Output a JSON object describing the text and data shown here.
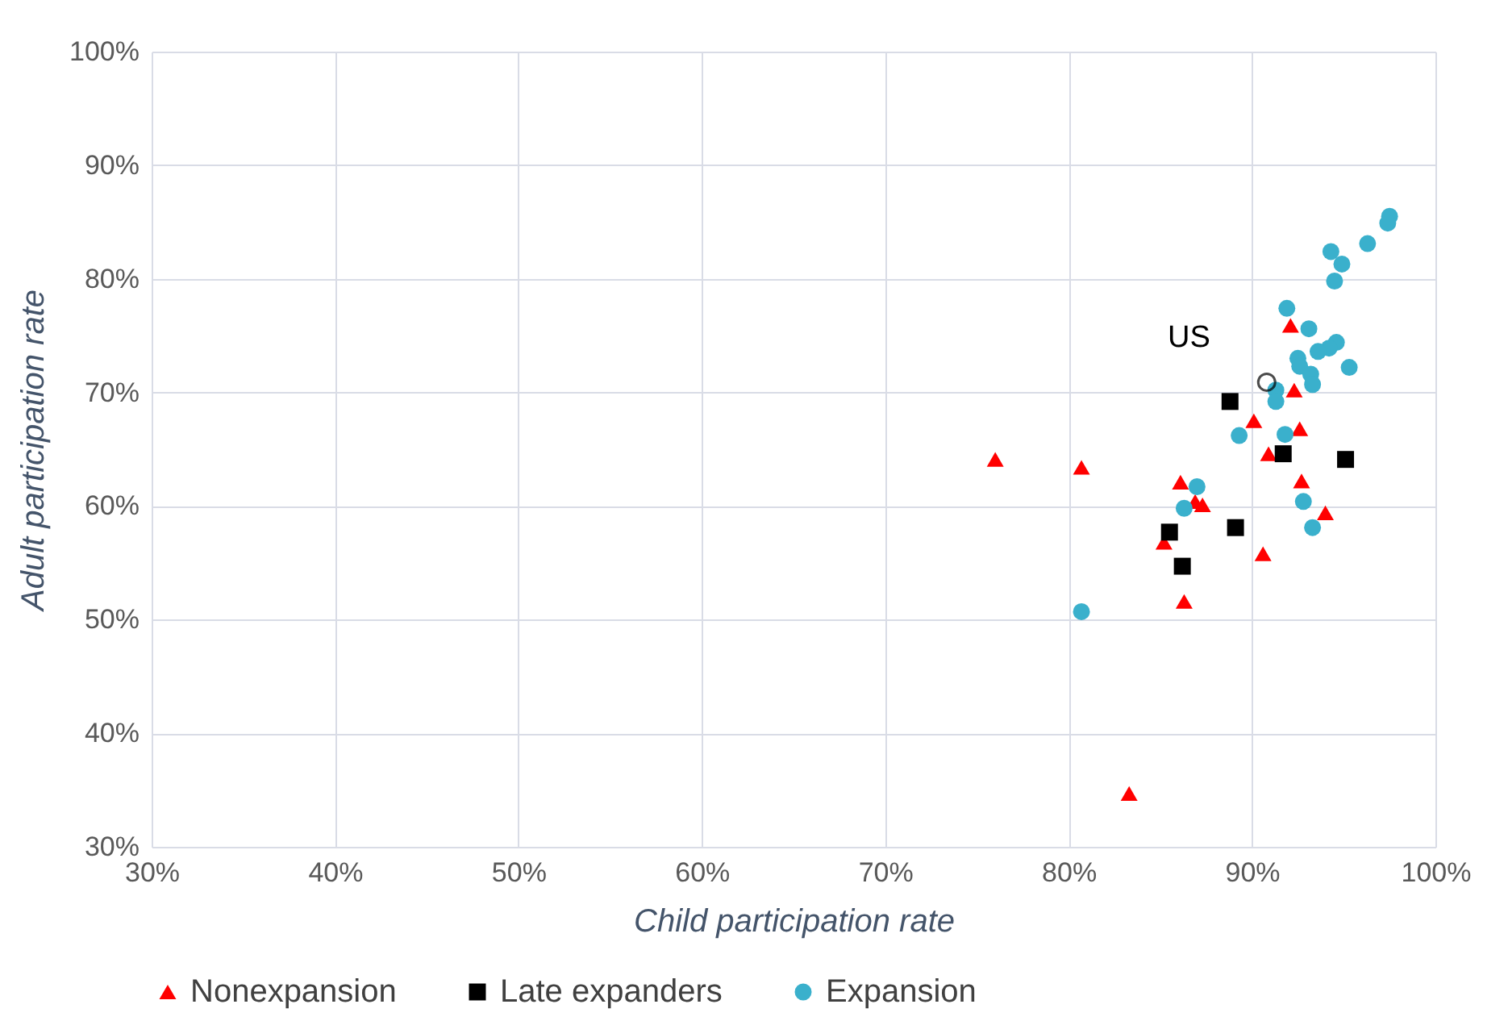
{
  "chart_data": {
    "type": "scatter",
    "xlabel": "Child participation rate",
    "ylabel": "Adult participation rate",
    "xlim": [
      30,
      100
    ],
    "ylim": [
      30,
      100
    ],
    "xticks": [
      {
        "value": 30,
        "label": "30%"
      },
      {
        "value": 40,
        "label": "40%"
      },
      {
        "value": 50,
        "label": "50%"
      },
      {
        "value": 60,
        "label": "60%"
      },
      {
        "value": 70,
        "label": "70%"
      },
      {
        "value": 80,
        "label": "80%"
      },
      {
        "value": 90,
        "label": "90%"
      },
      {
        "value": 100,
        "label": "100%"
      }
    ],
    "yticks": [
      {
        "value": 30,
        "label": "30%"
      },
      {
        "value": 40,
        "label": "40%"
      },
      {
        "value": 50,
        "label": "50%"
      },
      {
        "value": 60,
        "label": "60%"
      },
      {
        "value": 70,
        "label": "70%"
      },
      {
        "value": 80,
        "label": "80%"
      },
      {
        "value": 90,
        "label": "90%"
      },
      {
        "value": 100,
        "label": "100%"
      }
    ],
    "grid": true,
    "legend": "bottom",
    "series": [
      {
        "name": "Nonexpansion",
        "color": "#ff0000",
        "marker": "triangle",
        "x": [
          76,
          80.7,
          83.3,
          85.2,
          86.1,
          86.3,
          86.9,
          87.3,
          90.1,
          90.6,
          90.9,
          92.1,
          92.3,
          92.6,
          92.7,
          94.0
        ],
        "values": [
          64.1,
          63.4,
          34.7,
          56.8,
          62.1,
          51.6,
          60.4,
          60.1,
          67.5,
          55.8,
          64.6,
          75.9,
          70.2,
          66.8,
          62.2,
          59.4
        ]
      },
      {
        "name": "Late expanders",
        "color": "#000000",
        "marker": "square",
        "x": [
          88.8,
          91.7,
          95.1,
          89.1,
          85.5,
          86.2
        ],
        "values": [
          69.2,
          64.6,
          64.1,
          58.1,
          57.7,
          54.7
        ]
      },
      {
        "name": "Expansion",
        "color": "#3ab0cc",
        "marker": "circle",
        "x": [
          80.7,
          86.3,
          87.0,
          89.3,
          91.8,
          92.8,
          93.3,
          97.5,
          97.4,
          96.3,
          94.3,
          94.9,
          94.5,
          91.9,
          93.1,
          94.6,
          94.2,
          93.6,
          92.5,
          92.6,
          95.3,
          93.2,
          93.3,
          91.3,
          91.3
        ],
        "values": [
          50.7,
          59.8,
          61.7,
          66.2,
          66.3,
          60.4,
          58.1,
          85.5,
          84.9,
          83.1,
          82.4,
          81.3,
          79.8,
          77.4,
          75.6,
          74.4,
          73.9,
          73.6,
          73.0,
          72.3,
          72.2,
          71.6,
          70.7,
          70.2,
          69.2
        ]
      }
    ],
    "annotations": [
      {
        "text": "US",
        "x": 90.8,
        "y": 70.9
      }
    ]
  }
}
